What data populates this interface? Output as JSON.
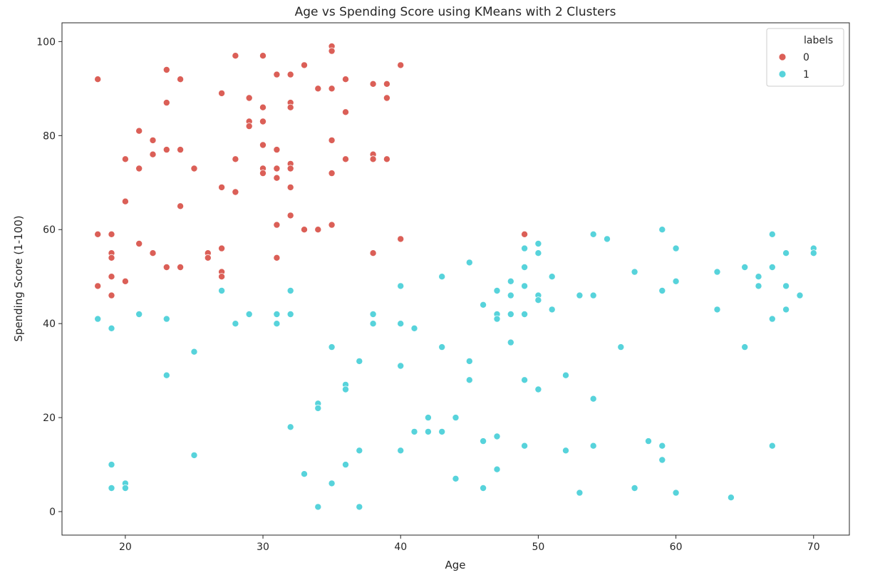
{
  "chart_data": {
    "type": "scatter",
    "title": "Age vs Spending Score using KMeans with 2 Clusters",
    "xlabel": "Age",
    "ylabel": "Spending Score (1-100)",
    "xlim": [
      15.4,
      72.6
    ],
    "ylim": [
      -5,
      104
    ],
    "xticks": [
      20,
      30,
      40,
      50,
      60,
      70
    ],
    "yticks": [
      0,
      20,
      40,
      60,
      80,
      100
    ],
    "grid": false,
    "legend": {
      "title": "labels",
      "placement": "top-right"
    },
    "colors": {
      "0": "#db5f57",
      "1": "#57d3db"
    },
    "series": [
      {
        "name": "0",
        "points": [
          [
            18,
            92
          ],
          [
            18,
            59
          ],
          [
            18,
            48
          ],
          [
            19,
            59
          ],
          [
            19,
            55
          ],
          [
            19,
            54
          ],
          [
            19,
            50
          ],
          [
            19,
            46
          ],
          [
            20,
            75
          ],
          [
            20,
            66
          ],
          [
            20,
            49
          ],
          [
            21,
            81
          ],
          [
            21,
            73
          ],
          [
            21,
            57
          ],
          [
            22,
            79
          ],
          [
            22,
            76
          ],
          [
            22,
            55
          ],
          [
            23,
            94
          ],
          [
            23,
            87
          ],
          [
            23,
            77
          ],
          [
            23,
            52
          ],
          [
            24,
            92
          ],
          [
            24,
            77
          ],
          [
            24,
            65
          ],
          [
            24,
            52
          ],
          [
            25,
            73
          ],
          [
            26,
            55
          ],
          [
            26,
            54
          ],
          [
            27,
            89
          ],
          [
            27,
            69
          ],
          [
            27,
            56
          ],
          [
            27,
            51
          ],
          [
            27,
            50
          ],
          [
            28,
            97
          ],
          [
            28,
            75
          ],
          [
            28,
            68
          ],
          [
            29,
            88
          ],
          [
            29,
            83
          ],
          [
            29,
            82
          ],
          [
            30,
            97
          ],
          [
            30,
            86
          ],
          [
            30,
            83
          ],
          [
            30,
            78
          ],
          [
            30,
            73
          ],
          [
            30,
            72
          ],
          [
            31,
            93
          ],
          [
            31,
            77
          ],
          [
            31,
            73
          ],
          [
            31,
            71
          ],
          [
            31,
            61
          ],
          [
            31,
            54
          ],
          [
            32,
            93
          ],
          [
            32,
            87
          ],
          [
            32,
            86
          ],
          [
            32,
            74
          ],
          [
            32,
            73
          ],
          [
            32,
            69
          ],
          [
            32,
            63
          ],
          [
            33,
            95
          ],
          [
            33,
            60
          ],
          [
            34,
            90
          ],
          [
            34,
            60
          ],
          [
            35,
            99
          ],
          [
            35,
            98
          ],
          [
            35,
            90
          ],
          [
            35,
            79
          ],
          [
            35,
            72
          ],
          [
            35,
            61
          ],
          [
            36,
            92
          ],
          [
            36,
            85
          ],
          [
            36,
            75
          ],
          [
            38,
            91
          ],
          [
            38,
            76
          ],
          [
            38,
            75
          ],
          [
            38,
            55
          ],
          [
            39,
            91
          ],
          [
            39,
            88
          ],
          [
            39,
            75
          ],
          [
            40,
            95
          ],
          [
            40,
            58
          ],
          [
            49,
            59
          ]
        ]
      },
      {
        "name": "1",
        "points": [
          [
            18,
            41
          ],
          [
            19,
            39
          ],
          [
            19,
            10
          ],
          [
            19,
            5
          ],
          [
            20,
            6
          ],
          [
            20,
            5
          ],
          [
            21,
            42
          ],
          [
            23,
            41
          ],
          [
            23,
            29
          ],
          [
            25,
            34
          ],
          [
            25,
            12
          ],
          [
            27,
            47
          ],
          [
            28,
            40
          ],
          [
            29,
            42
          ],
          [
            31,
            42
          ],
          [
            31,
            40
          ],
          [
            32,
            47
          ],
          [
            32,
            42
          ],
          [
            32,
            18
          ],
          [
            33,
            8
          ],
          [
            34,
            23
          ],
          [
            34,
            22
          ],
          [
            34,
            1
          ],
          [
            35,
            35
          ],
          [
            35,
            6
          ],
          [
            36,
            27
          ],
          [
            36,
            26
          ],
          [
            36,
            10
          ],
          [
            37,
            32
          ],
          [
            37,
            13
          ],
          [
            37,
            1
          ],
          [
            38,
            42
          ],
          [
            38,
            40
          ],
          [
            40,
            48
          ],
          [
            40,
            40
          ],
          [
            40,
            31
          ],
          [
            40,
            13
          ],
          [
            41,
            39
          ],
          [
            41,
            17
          ],
          [
            42,
            20
          ],
          [
            42,
            17
          ],
          [
            43,
            50
          ],
          [
            43,
            35
          ],
          [
            43,
            17
          ],
          [
            44,
            20
          ],
          [
            44,
            7
          ],
          [
            45,
            53
          ],
          [
            45,
            32
          ],
          [
            45,
            28
          ],
          [
            46,
            44
          ],
          [
            46,
            15
          ],
          [
            46,
            5
          ],
          [
            47,
            47
          ],
          [
            47,
            42
          ],
          [
            47,
            41
          ],
          [
            47,
            16
          ],
          [
            47,
            9
          ],
          [
            48,
            49
          ],
          [
            48,
            46
          ],
          [
            48,
            42
          ],
          [
            48,
            36
          ],
          [
            49,
            56
          ],
          [
            49,
            52
          ],
          [
            49,
            48
          ],
          [
            49,
            42
          ],
          [
            49,
            28
          ],
          [
            49,
            14
          ],
          [
            50,
            57
          ],
          [
            50,
            55
          ],
          [
            50,
            46
          ],
          [
            50,
            45
          ],
          [
            50,
            26
          ],
          [
            51,
            50
          ],
          [
            51,
            43
          ],
          [
            52,
            29
          ],
          [
            52,
            13
          ],
          [
            53,
            46
          ],
          [
            53,
            4
          ],
          [
            54,
            59
          ],
          [
            54,
            46
          ],
          [
            54,
            24
          ],
          [
            54,
            14
          ],
          [
            55,
            58
          ],
          [
            56,
            35
          ],
          [
            57,
            51
          ],
          [
            57,
            5
          ],
          [
            58,
            15
          ],
          [
            59,
            60
          ],
          [
            59,
            47
          ],
          [
            59,
            14
          ],
          [
            59,
            11
          ],
          [
            60,
            56
          ],
          [
            60,
            49
          ],
          [
            60,
            4
          ],
          [
            63,
            51
          ],
          [
            63,
            43
          ],
          [
            64,
            3
          ],
          [
            65,
            52
          ],
          [
            65,
            35
          ],
          [
            66,
            50
          ],
          [
            66,
            48
          ],
          [
            67,
            59
          ],
          [
            67,
            52
          ],
          [
            67,
            41
          ],
          [
            67,
            14
          ],
          [
            68,
            55
          ],
          [
            68,
            48
          ],
          [
            68,
            43
          ],
          [
            69,
            46
          ],
          [
            70,
            56
          ],
          [
            70,
            55
          ]
        ]
      }
    ]
  }
}
